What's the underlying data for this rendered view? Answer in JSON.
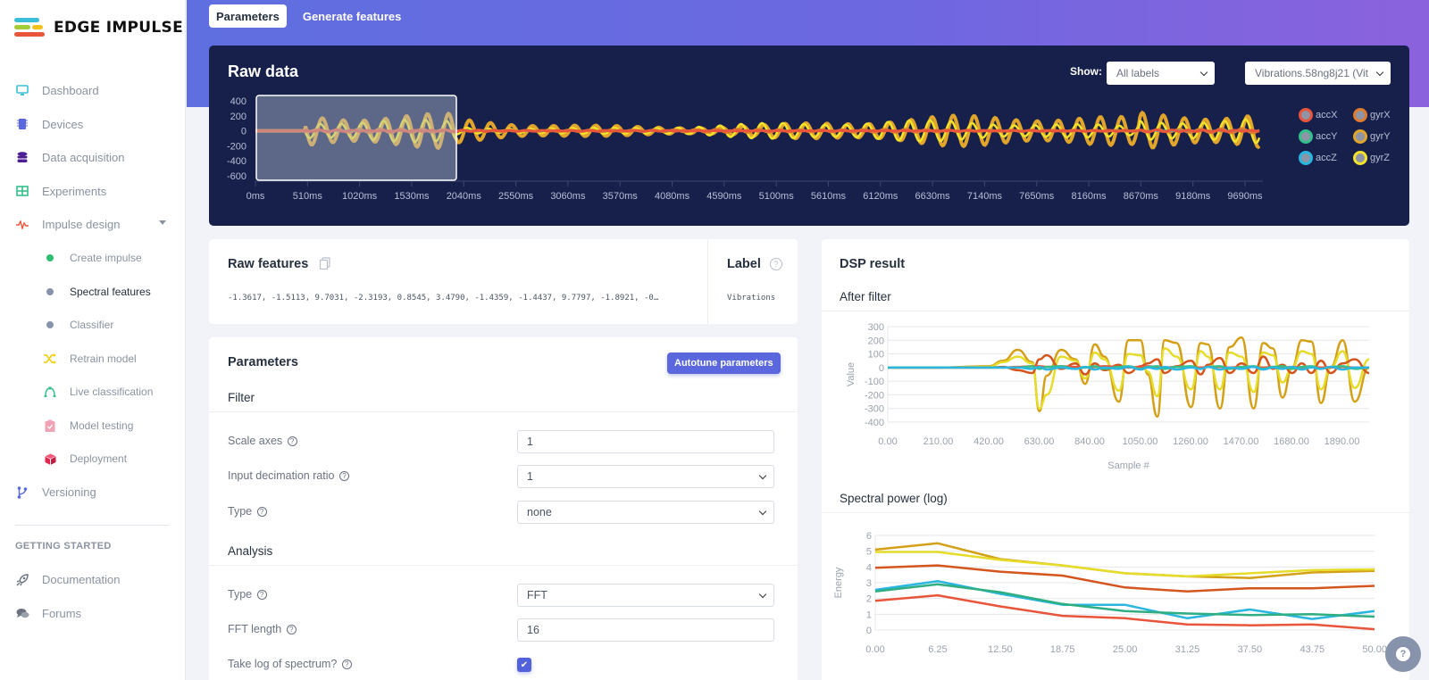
{
  "app": {
    "logo_text": "EDGE IMPULSE"
  },
  "sidebar": {
    "items": [
      {
        "label": "Dashboard",
        "icon": "monitor-icon",
        "color": "#3bbfd8"
      },
      {
        "label": "Devices",
        "icon": "chip-icon",
        "color": "#5a67dd"
      },
      {
        "label": "Data acquisition",
        "icon": "database-icon",
        "color": "#4c1d95"
      },
      {
        "label": "Experiments",
        "icon": "grid-icon",
        "color": "#34c08b"
      },
      {
        "label": "Impulse design",
        "icon": "pulse-icon",
        "color": "#e8553b"
      }
    ],
    "sub_items": [
      {
        "label": "Create impulse",
        "icon": "dot-icon",
        "color": "#2fbf71"
      },
      {
        "label": "Spectral features",
        "icon": "dot-icon",
        "color": "#8793aa",
        "active": true
      },
      {
        "label": "Classifier",
        "icon": "dot-icon",
        "color": "#8793aa"
      },
      {
        "label": "Retrain model",
        "icon": "shuffle-icon",
        "color": "#f2d21c"
      },
      {
        "label": "Live classification",
        "icon": "bezier-icon",
        "color": "#34c08b"
      },
      {
        "label": "Model testing",
        "icon": "clipboard-check-icon",
        "color": "#f0a3b4"
      },
      {
        "label": "Deployment",
        "icon": "cube-icon",
        "color": "#e0284d"
      }
    ],
    "versioning": {
      "label": "Versioning",
      "icon": "branch-icon",
      "color": "#5a67dd"
    },
    "section_title": "GETTING STARTED",
    "getting_started": [
      {
        "label": "Documentation",
        "icon": "rocket-icon"
      },
      {
        "label": "Forums",
        "icon": "comments-icon"
      }
    ]
  },
  "tabs": [
    {
      "label": "Parameters",
      "active": true
    },
    {
      "label": "Generate features",
      "active": false
    }
  ],
  "raw_data": {
    "title": "Raw data",
    "show_label": "Show:",
    "show_select": "All labels",
    "sample_select": "Vibrations.58ng8j21 (Vit",
    "y_ticks": [
      "400",
      "200",
      "0",
      "-200",
      "-400",
      "-600"
    ],
    "x_ticks": [
      "0ms",
      "510ms",
      "1020ms",
      "1530ms",
      "2040ms",
      "2550ms",
      "3060ms",
      "3570ms",
      "4080ms",
      "4590ms",
      "5100ms",
      "5610ms",
      "6120ms",
      "6630ms",
      "7140ms",
      "7650ms",
      "8160ms",
      "8670ms",
      "9180ms",
      "9690ms"
    ],
    "legend": [
      {
        "name": "accX",
        "color": "#e8553b"
      },
      {
        "name": "gyrX",
        "color": "#e07b2e"
      },
      {
        "name": "accY",
        "color": "#34c08b"
      },
      {
        "name": "gyrY",
        "color": "#e0a52a"
      },
      {
        "name": "accZ",
        "color": "#29b6e0"
      },
      {
        "name": "gyrZ",
        "color": "#f2e22a"
      }
    ]
  },
  "raw_features": {
    "title": "Raw features",
    "values": "-1.3617, -1.5113, 9.7031, -2.3193, 0.8545, 3.4790, -1.4359, -1.4437, 9.7797, -1.8921, -0…",
    "label_title": "Label",
    "label_value": "Vibrations"
  },
  "parameters": {
    "title": "Parameters",
    "autotune_button": "Autotune parameters",
    "filter_title": "Filter",
    "scale_axes_label": "Scale axes",
    "scale_axes_value": "1",
    "decimation_label": "Input decimation ratio",
    "decimation_value": "1",
    "filter_type_label": "Type",
    "filter_type_value": "none",
    "analysis_title": "Analysis",
    "analysis_type_label": "Type",
    "analysis_type_value": "FFT",
    "fft_length_label": "FFT length",
    "fft_length_value": "16",
    "take_log_label": "Take log of spectrum?",
    "take_log_checked": true,
    "help_glyph": "?"
  },
  "dsp": {
    "title": "DSP result",
    "after_filter_title": "After filter",
    "spectral_title": "Spectral power (log)"
  },
  "chart_data": [
    {
      "type": "line",
      "title": "After filter",
      "xlabel": "Sample #",
      "ylabel": "Value",
      "ylim": [
        -400,
        300
      ],
      "xlim": [
        0,
        2000
      ],
      "y_ticks": [
        "300",
        "200",
        "100",
        "0",
        "-100",
        "-200",
        "-300",
        "-400"
      ],
      "x_ticks": [
        "0.00",
        "210.00",
        "420.00",
        "630.00",
        "840.00",
        "1050.00",
        "1260.00",
        "1470.00",
        "1680.00",
        "1890.00"
      ],
      "grid": true,
      "x": [
        0,
        200,
        420,
        480,
        540,
        600,
        630,
        660,
        720,
        780,
        820,
        860,
        900,
        960,
        1000,
        1050,
        1080,
        1120,
        1150,
        1200,
        1260,
        1300,
        1330,
        1380,
        1420,
        1470,
        1520,
        1560,
        1600,
        1640,
        1680,
        1720,
        1760,
        1800,
        1840,
        1890,
        1940,
        2000
      ],
      "series": [
        {
          "name": "gyrY",
          "color": "#d4a017",
          "values": [
            0,
            0,
            10,
            50,
            130,
            40,
            -320,
            -60,
            130,
            60,
            -120,
            170,
            80,
            -250,
            200,
            200,
            -50,
            -360,
            200,
            180,
            -290,
            180,
            170,
            -300,
            150,
            220,
            -300,
            180,
            140,
            -220,
            0,
            200,
            190,
            -260,
            0,
            200,
            -250,
            0
          ]
        },
        {
          "name": "gyrZ",
          "color": "#e6dc2a",
          "values": [
            0,
            0,
            5,
            40,
            80,
            30,
            -300,
            -200,
            80,
            50,
            -80,
            110,
            60,
            -170,
            100,
            90,
            -30,
            -210,
            140,
            80,
            -160,
            120,
            80,
            -160,
            110,
            80,
            -180,
            110,
            90,
            -110,
            0,
            120,
            100,
            -160,
            0,
            120,
            -150,
            60
          ]
        },
        {
          "name": "gyrX",
          "color": "#d4561e",
          "values": [
            0,
            0,
            0,
            5,
            -20,
            -40,
            60,
            90,
            -10,
            30,
            -50,
            30,
            -20,
            20,
            -40,
            10,
            30,
            60,
            -40,
            10,
            50,
            -50,
            20,
            70,
            -40,
            30,
            -40,
            80,
            -10,
            20,
            -40,
            30,
            -40,
            50,
            -40,
            30,
            60,
            -40
          ]
        },
        {
          "name": "accX",
          "color": "#e8553b",
          "values": [
            0,
            0,
            0,
            0,
            5,
            10,
            10,
            5,
            10,
            5,
            0,
            5,
            10,
            5,
            0,
            5,
            10,
            5,
            0,
            5,
            5,
            0,
            5,
            5,
            0,
            5,
            5,
            0,
            5,
            0,
            5,
            0,
            5,
            0,
            0,
            5,
            0,
            0
          ]
        },
        {
          "name": "accY",
          "color": "#34c08b",
          "values": [
            0,
            0,
            0,
            0,
            0,
            10,
            -10,
            5,
            10,
            -10,
            0,
            10,
            -10,
            5,
            10,
            -10,
            5,
            10,
            -10,
            5,
            10,
            -10,
            5,
            10,
            -10,
            5,
            10,
            -10,
            5,
            10,
            -10,
            5,
            10,
            -10,
            5,
            10,
            -10,
            0
          ]
        },
        {
          "name": "accZ",
          "color": "#29b6e0",
          "values": [
            0,
            0,
            0,
            0,
            0,
            -10,
            5,
            -15,
            0,
            -10,
            5,
            -15,
            0,
            -10,
            5,
            -15,
            0,
            -10,
            5,
            -15,
            0,
            -10,
            5,
            -15,
            0,
            -10,
            5,
            -15,
            0,
            -10,
            5,
            -15,
            0,
            -10,
            5,
            -15,
            0,
            0
          ]
        }
      ]
    },
    {
      "type": "line",
      "title": "Spectral power (log)",
      "xlabel": "",
      "ylabel": "Energy",
      "ylim": [
        0,
        6
      ],
      "x": [
        0,
        6.25,
        12.5,
        18.75,
        25,
        31.25,
        37.5,
        43.75,
        50
      ],
      "y_ticks": [
        "6",
        "5",
        "4",
        "3",
        "2",
        "1",
        "0"
      ],
      "x_ticks": [
        "0.00",
        "6.25",
        "12.50",
        "18.75",
        "25.00",
        "31.25",
        "37.50",
        "43.75",
        "50.00"
      ],
      "grid": true,
      "series": [
        {
          "name": "gyrY",
          "color": "#d4a017",
          "values": [
            5.1,
            5.5,
            4.5,
            4.1,
            3.6,
            3.4,
            3.3,
            3.65,
            3.75
          ]
        },
        {
          "name": "gyrZ",
          "color": "#e6dc2a",
          "values": [
            4.95,
            4.95,
            4.45,
            4.1,
            3.6,
            3.4,
            3.6,
            3.8,
            3.85
          ]
        },
        {
          "name": "gyrX",
          "color": "#d4561e",
          "values": [
            3.95,
            4.1,
            3.7,
            3.45,
            2.7,
            2.45,
            2.65,
            2.65,
            2.8
          ]
        },
        {
          "name": "accZ",
          "color": "#29b6e0",
          "values": [
            2.55,
            3.1,
            2.3,
            1.6,
            1.6,
            0.75,
            1.3,
            0.7,
            1.2
          ]
        },
        {
          "name": "accY",
          "color": "#2fae82",
          "values": [
            2.45,
            2.9,
            2.4,
            1.65,
            1.2,
            1.05,
            0.95,
            1.0,
            0.85
          ]
        },
        {
          "name": "accX",
          "color": "#e8553b",
          "values": [
            1.85,
            2.2,
            1.5,
            0.9,
            0.75,
            0.35,
            0.3,
            0.35,
            0.05
          ]
        }
      ]
    }
  ],
  "help_button": {
    "glyph": "?"
  }
}
